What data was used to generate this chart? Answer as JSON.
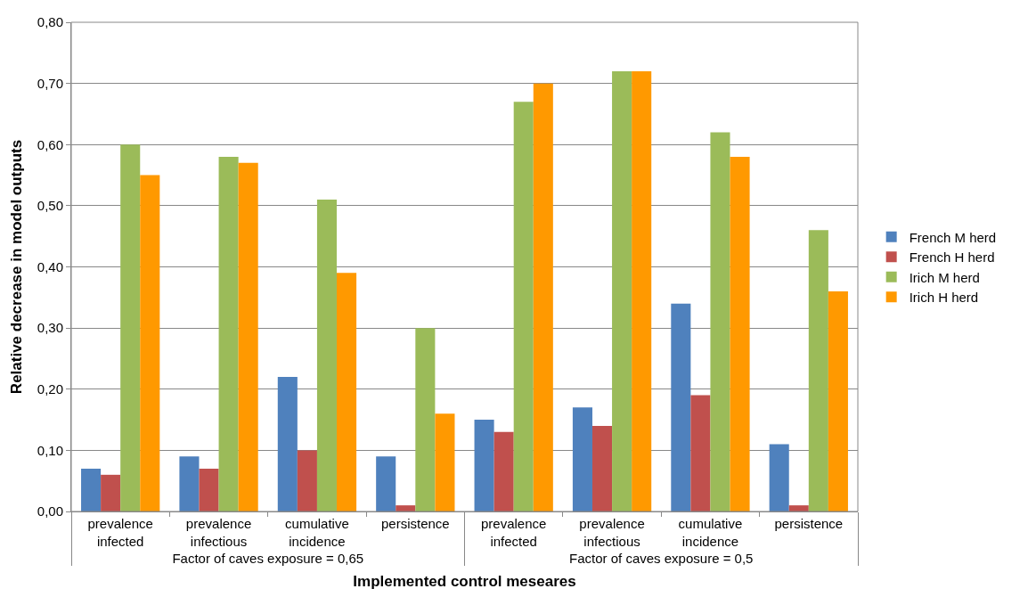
{
  "chart_data": {
    "type": "bar",
    "xlabel": "Implemented control meseares",
    "ylabel": "Relative decrease in model outputs",
    "categories": [
      "prevalence infected",
      "prevalence infectious",
      "cumulative incidence",
      "persistence",
      "prevalence infected",
      "prevalence infectious",
      "cumulative incidence",
      "persistence"
    ],
    "annotations": [
      "Factor of caves exposure = 0,65",
      "Factor of caves exposure = 0,5"
    ],
    "series": [
      {
        "name": "French M herd",
        "color": "#4f81bd",
        "values": [
          0.07,
          0.09,
          0.22,
          0.09,
          0.15,
          0.17,
          0.34,
          0.11
        ]
      },
      {
        "name": "French H herd",
        "color": "#c0504d",
        "values": [
          0.06,
          0.07,
          0.1,
          0.01,
          0.13,
          0.14,
          0.19,
          0.01
        ]
      },
      {
        "name": "Irich M herd",
        "color": "#9bbb59",
        "values": [
          0.6,
          0.58,
          0.51,
          0.3,
          0.67,
          0.72,
          0.62,
          0.46
        ]
      },
      {
        "name": "Irich H herd",
        "color": "#ff9900",
        "values": [
          0.55,
          0.57,
          0.39,
          0.16,
          0.7,
          0.72,
          0.58,
          0.36
        ]
      }
    ],
    "ylim": [
      0,
      0.8
    ],
    "yticks": [
      {
        "value": 0,
        "label": "0,00"
      },
      {
        "value": 0.1,
        "label": "0,10"
      },
      {
        "value": 0.2,
        "label": "0,20"
      },
      {
        "value": 0.3,
        "label": "0,30"
      },
      {
        "value": 0.4,
        "label": "0,40"
      },
      {
        "value": 0.5,
        "label": "0,50"
      },
      {
        "value": 0.6,
        "label": "0,60"
      },
      {
        "value": 0.7,
        "label": "0,70"
      },
      {
        "value": 0.8,
        "label": "0,80"
      }
    ],
    "grid": "y",
    "legend": "right"
  }
}
